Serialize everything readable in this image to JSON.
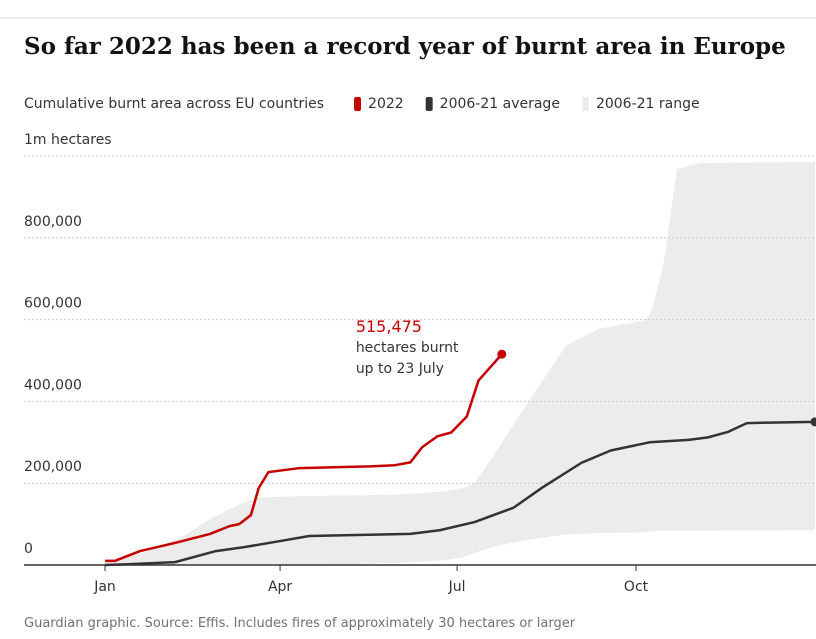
{
  "chart_data": {
    "type": "line",
    "title": "So far 2022 has been a record year of burnt area in Europe",
    "subtitle": "Cumulative burnt area across EU countries",
    "source": "Guardian graphic. Source: Effis. Includes fires of approximately 30 hectares or larger",
    "xlim": [
      0,
      365
    ],
    "xticks": [
      {
        "value": 0,
        "label": "Jan"
      },
      {
        "value": 90,
        "label": "Apr"
      },
      {
        "value": 181,
        "label": "Jul"
      },
      {
        "value": 273,
        "label": "Oct"
      }
    ],
    "ylim": [
      0,
      1000000
    ],
    "yticks": [
      0,
      {
        "value": 200000,
        "label": "200,000"
      },
      {
        "value": 400000,
        "label": "400,000"
      },
      {
        "value": 600000,
        "label": "600,000"
      },
      {
        "value": 800000,
        "label": "800,000"
      },
      {
        "value": 1000000,
        "label": "1m hectares"
      }
    ],
    "grid": true,
    "series": [
      {
        "name": "2022",
        "color": "#c70000",
        "x": [
          0,
          5,
          18,
          36,
          54,
          64,
          69,
          75,
          79,
          84,
          100,
          136,
          149,
          157,
          163,
          171,
          178,
          186,
          192,
          204
        ],
        "values": [
          10000,
          10000,
          34000,
          54000,
          76000,
          95000,
          100000,
          122000,
          188000,
          227000,
          237000,
          241000,
          244000,
          251000,
          288000,
          315000,
          324000,
          363000,
          451000,
          515475
        ]
      },
      {
        "name": "2006-21 average",
        "color": "#333333",
        "x": [
          0,
          13,
          36,
          57,
          72,
          93,
          105,
          126,
          157,
          172,
          190,
          210,
          225,
          245,
          260,
          280,
          300,
          310,
          320,
          330,
          365
        ],
        "values": [
          0,
          2000,
          7000,
          34000,
          44000,
          61000,
          71000,
          73000,
          76000,
          85000,
          105000,
          140000,
          190000,
          250000,
          280000,
          300000,
          306000,
          312000,
          325000,
          347000,
          350000
        ]
      },
      {
        "name": "2006-21 range",
        "color": "#ececec",
        "x": [
          0,
          20,
          40,
          55,
          70,
          80,
          100,
          150,
          175,
          185,
          190,
          200,
          215,
          237,
          254,
          278,
          281,
          287,
          294,
          306,
          365
        ],
        "upper": [
          5000,
          30000,
          70000,
          115000,
          150000,
          165000,
          168000,
          172000,
          180000,
          190000,
          200000,
          270000,
          380000,
          537000,
          578000,
          598000,
          622000,
          732000,
          968000,
          983000,
          985000
        ],
        "lower": [
          0,
          0,
          0,
          0,
          0,
          0,
          0,
          5000,
          12000,
          20000,
          30000,
          45000,
          60000,
          75000,
          78000,
          80000,
          82000,
          84000,
          84000,
          84000,
          85000
        ]
      }
    ],
    "annotation": {
      "value": 515475,
      "label": "515,475",
      "lines": [
        "hectares burnt",
        "up to 23 July"
      ]
    }
  }
}
